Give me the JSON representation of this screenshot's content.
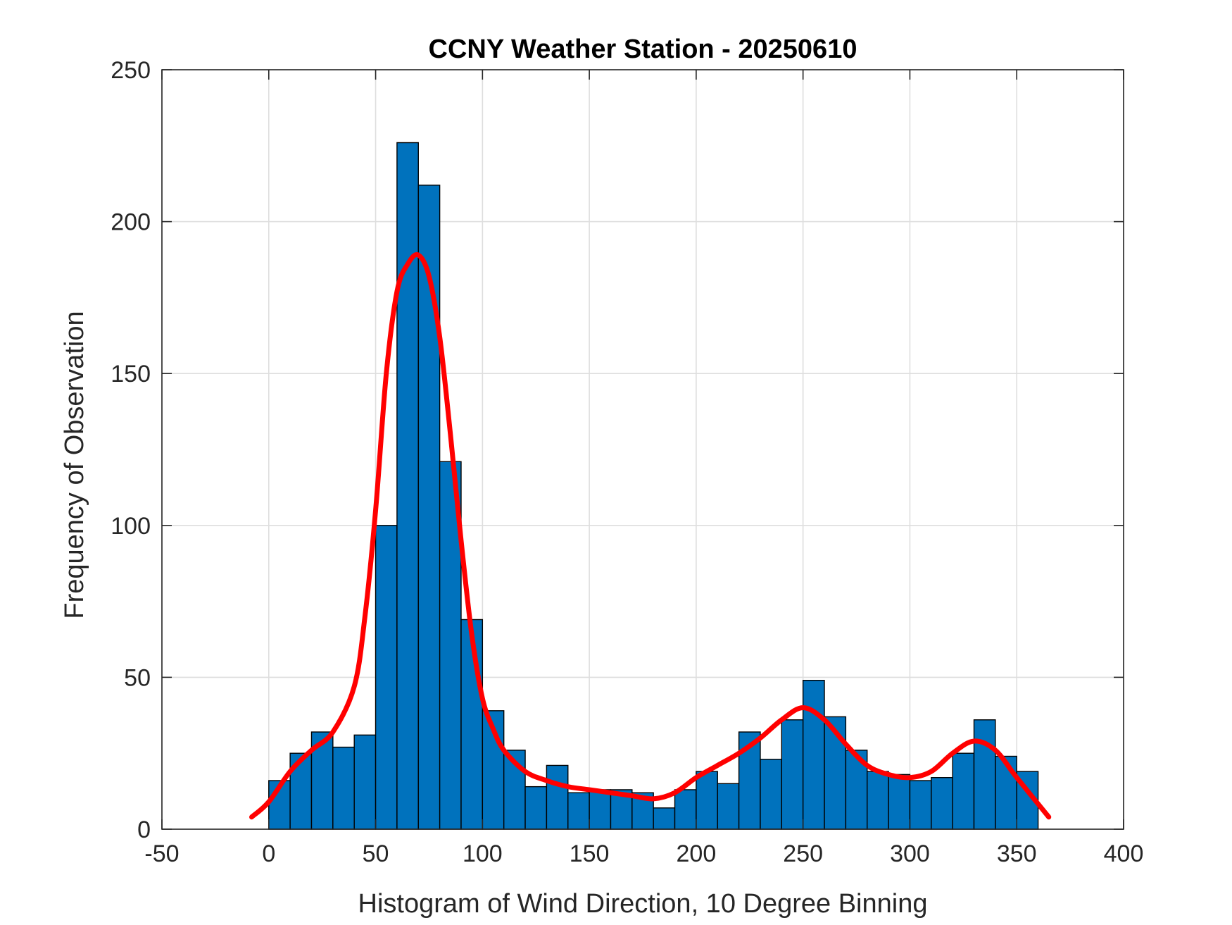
{
  "chart_data": {
    "type": "bar",
    "title": "CCNY Weather Station - 20250610",
    "xlabel": "Histogram of Wind Direction, 10 Degree Binning",
    "ylabel": "Frequency of Observation",
    "xlim": [
      -50,
      400
    ],
    "ylim": [
      0,
      250
    ],
    "xticks": [
      -50,
      0,
      50,
      100,
      150,
      200,
      250,
      300,
      350,
      400
    ],
    "yticks": [
      0,
      50,
      100,
      150,
      200,
      250
    ],
    "grid": true,
    "bin_width": 10,
    "bin_edges_start": [
      0,
      10,
      20,
      30,
      40,
      50,
      60,
      70,
      80,
      90,
      100,
      110,
      120,
      130,
      140,
      150,
      160,
      170,
      180,
      190,
      200,
      210,
      220,
      230,
      240,
      250,
      260,
      270,
      280,
      290,
      300,
      310,
      320,
      330,
      340,
      350
    ],
    "values": [
      16,
      25,
      32,
      27,
      31,
      100,
      226,
      212,
      121,
      69,
      39,
      26,
      14,
      21,
      12,
      13,
      13,
      12,
      7,
      13,
      19,
      15,
      32,
      23,
      36,
      49,
      37,
      26,
      19,
      18,
      16,
      17,
      25,
      36,
      24,
      19
    ],
    "bar_color": "#0072BD",
    "bar_edge_color": "#000000",
    "series": [
      {
        "type": "line",
        "color": "#FF0000",
        "x": [
          -8,
          0,
          10,
          20,
          30,
          40,
          45,
          50,
          55,
          60,
          65,
          70,
          75,
          80,
          85,
          90,
          95,
          100,
          105,
          110,
          120,
          130,
          140,
          150,
          160,
          170,
          180,
          190,
          200,
          210,
          220,
          230,
          240,
          250,
          260,
          270,
          280,
          290,
          300,
          310,
          320,
          330,
          340,
          350,
          365
        ],
        "y": [
          4,
          9,
          19,
          26,
          32,
          47,
          70,
          105,
          150,
          177,
          186,
          189,
          182,
          162,
          130,
          95,
          64,
          43,
          33,
          26,
          19,
          16,
          14,
          13,
          12,
          11,
          10,
          12,
          17,
          21,
          25,
          30,
          36,
          40,
          36,
          28,
          21,
          18,
          17,
          19,
          25,
          29,
          26,
          17,
          4
        ]
      }
    ]
  }
}
